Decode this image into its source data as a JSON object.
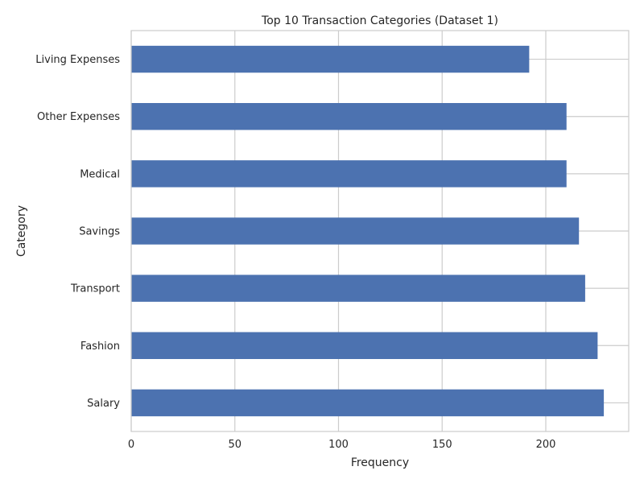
{
  "chart_data": {
    "type": "bar",
    "orientation": "horizontal",
    "title": "Top 10 Transaction Categories (Dataset 1)",
    "xlabel": "Frequency",
    "ylabel": "Category",
    "categories": [
      "Living Expenses",
      "Other Expenses",
      "Medical",
      "Savings",
      "Transport",
      "Fashion",
      "Salary"
    ],
    "values": [
      192,
      210,
      210,
      216,
      219,
      225,
      228
    ],
    "xlim": [
      0,
      240
    ],
    "xticks": [
      0,
      50,
      100,
      150,
      200
    ],
    "grid": true,
    "bar_color": "#4c72b0",
    "grid_color": "#cccccc",
    "frame_color": "#cccccc"
  }
}
